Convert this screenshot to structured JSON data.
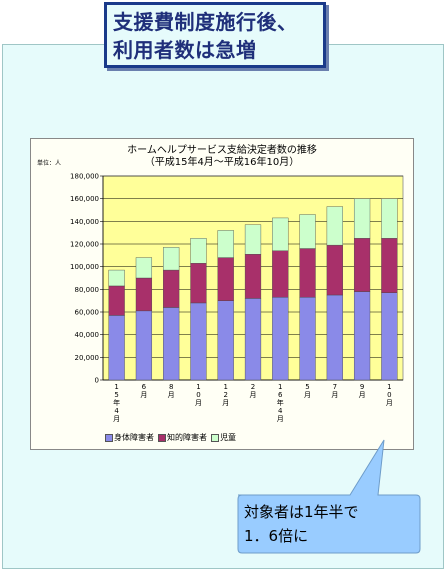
{
  "slide": {
    "title_line1": "支援費制度施行後、",
    "title_line2": "利用者数は急増",
    "callout_line1": "対象者は1年半で",
    "callout_line2": "1．6倍に"
  },
  "colors": {
    "physical": "#8a8ae8",
    "intellectual": "#a8306a",
    "children": "#ccffcc",
    "plot_bg": "#ffff99",
    "callout_bg": "#99ccff"
  },
  "chart_data": {
    "type": "bar",
    "stacked": true,
    "title": "ホームヘルプサービス支給決定者数の推移",
    "subtitle": "（平成15年4月～平成16年10月）",
    "unit_label": "単位：人",
    "categories": [
      "15年4月",
      "6月",
      "8月",
      "10月",
      "12月",
      "2月",
      "16年4月",
      "5月",
      "7月",
      "9月",
      "10月"
    ],
    "series": [
      {
        "name": "身体障害者",
        "values": [
          57000,
          61000,
          64000,
          68000,
          70000,
          72000,
          73000,
          73000,
          75000,
          78000,
          77000
        ]
      },
      {
        "name": "知的障害者",
        "values": [
          26000,
          29000,
          33000,
          35000,
          38000,
          39000,
          41000,
          43000,
          44000,
          47000,
          48000
        ]
      },
      {
        "name": "児童",
        "values": [
          14000,
          18000,
          20000,
          22000,
          24000,
          26000,
          29000,
          30000,
          34000,
          35000,
          35000
        ]
      }
    ],
    "ylim": [
      0,
      180000
    ],
    "yticks": [
      "0",
      "20,000",
      "40,000",
      "60,000",
      "80,000",
      "100,000",
      "120,000",
      "140,000",
      "160,000",
      "180,000"
    ],
    "grid": true,
    "legend_position": "bottom"
  }
}
